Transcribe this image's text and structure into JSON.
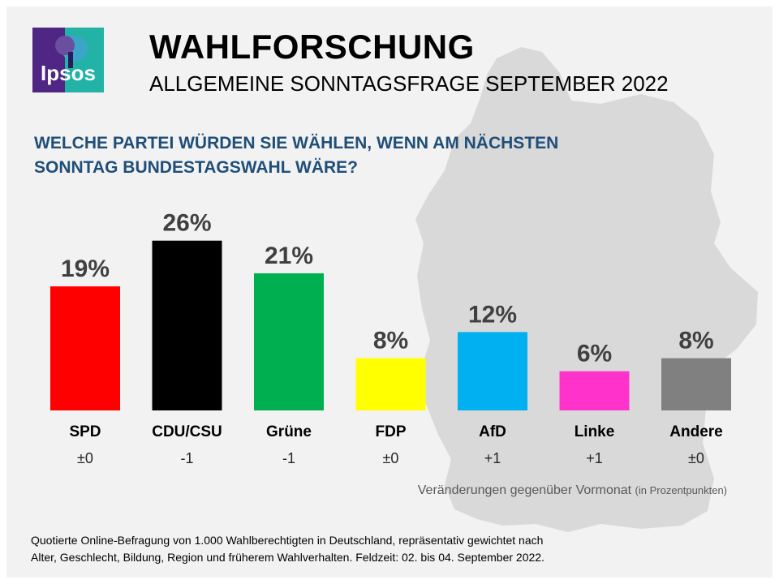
{
  "logo": {
    "text": "Ipsos"
  },
  "header": {
    "title": "WAHLFORSCHUNG",
    "subtitle": "ALLGEMEINE SONNTAGSFRAGE SEPTEMBER 2022"
  },
  "question": "WELCHE PARTEI WÜRDEN SIE WÄHLEN, WENN AM NÄCHSTEN SONNTAG BUNDESTAGSWAHL WÄRE?",
  "chart_data": {
    "type": "bar",
    "title": "",
    "xlabel": "",
    "ylabel": "",
    "ylim": [
      0,
      30
    ],
    "grid": false,
    "categories": [
      "SPD",
      "CDU/CSU",
      "Grüne",
      "FDP",
      "AfD",
      "Linke",
      "Andere"
    ],
    "values": [
      19,
      26,
      21,
      8,
      12,
      6,
      8
    ],
    "value_labels": [
      "19%",
      "26%",
      "21%",
      "8%",
      "12%",
      "6%",
      "8%"
    ],
    "changes": [
      "±0",
      "-1",
      "-1",
      "±0",
      "+1",
      "+1",
      "±0"
    ],
    "colors": [
      "#ff0000",
      "#000000",
      "#00b050",
      "#ffff00",
      "#00b0f0",
      "#ff33cc",
      "#808080"
    ]
  },
  "notes": {
    "change_label": "Veränderungen gegenüber Vormonat",
    "change_unit": "(in Prozentpunkten)"
  },
  "footnote": {
    "line1": "Quotierte Online-Befragung von 1.000 Wahlberechtigten in Deutschland, repräsentativ gewichtet nach",
    "line2": "Alter, Geschlecht, Bildung, Region und früherem Wahlverhalten. Feldzeit: 02. bis 04. September 2022."
  },
  "colors": {
    "background": "#f2f2f2",
    "map": "#d9d9d9",
    "question": "#1f4e79",
    "logo": "#4f2683"
  }
}
